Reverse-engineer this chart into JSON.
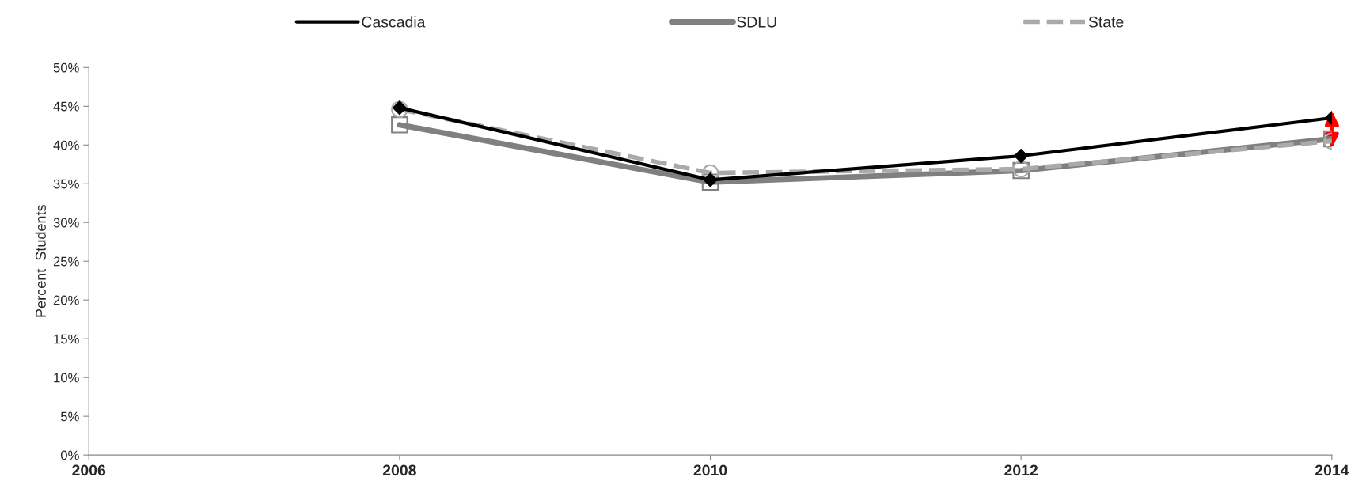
{
  "chart_data": {
    "type": "line",
    "ylabel": "Percent  Students",
    "x": [
      2008,
      2010,
      2012,
      2014
    ],
    "series": [
      {
        "name": "Cascadia",
        "color": "#000000",
        "marker": "diamond",
        "line_style": "solid",
        "values": [
          44.8,
          35.5,
          38.6,
          43.5
        ]
      },
      {
        "name": "SDLU",
        "color": "#808080",
        "marker": "square",
        "line_style": "solid",
        "values": [
          42.6,
          35.2,
          36.7,
          40.8
        ]
      },
      {
        "name": "State",
        "color": "#aaaaaa",
        "marker": "circle",
        "line_style": "dashed",
        "values": [
          44.6,
          36.4,
          36.9,
          40.5
        ]
      }
    ],
    "xlim": [
      2006,
      2014
    ],
    "xticks": [
      2006,
      2008,
      2010,
      2012,
      2014
    ],
    "ylim": [
      0,
      50
    ],
    "yticks": [
      {
        "value": 0,
        "label": "0%"
      },
      {
        "value": 5,
        "label": "5%"
      },
      {
        "value": 10,
        "label": "10%"
      },
      {
        "value": 15,
        "label": "15%"
      },
      {
        "value": 20,
        "label": "20%"
      },
      {
        "value": 25,
        "label": "25%"
      },
      {
        "value": 30,
        "label": "30%"
      },
      {
        "value": 35,
        "label": "35%"
      },
      {
        "value": 40,
        "label": "40%"
      },
      {
        "value": 45,
        "label": "45%"
      },
      {
        "value": 50,
        "label": "50%"
      }
    ],
    "grid": false,
    "legend": "top"
  }
}
